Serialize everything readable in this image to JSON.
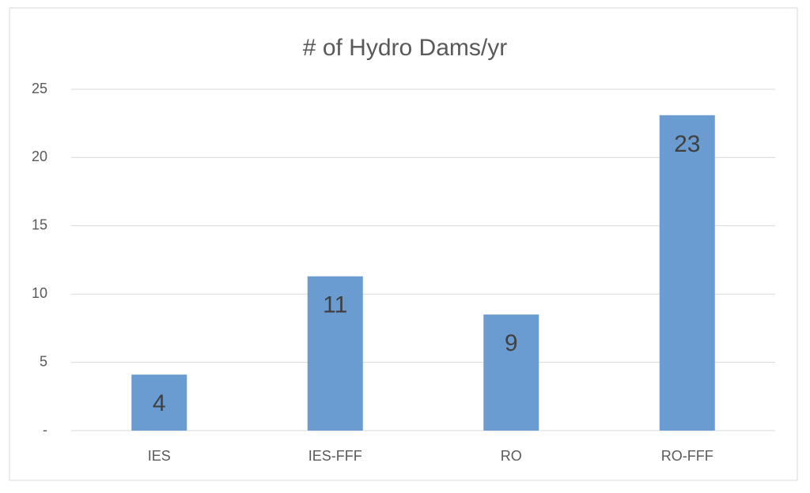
{
  "chart_data": {
    "type": "bar",
    "title": "# of Hydro Dams/yr",
    "categories": [
      "IES",
      "IES-FFF",
      "RO",
      "RO-FFF"
    ],
    "values": [
      4.1,
      11.3,
      8.5,
      23.1
    ],
    "value_labels": [
      "4",
      "11",
      "9",
      "23"
    ],
    "color": "#6a9bd1",
    "ylim": [
      0,
      25
    ],
    "yticks": [
      {
        "value": 0,
        "label": "-"
      },
      5,
      10,
      15,
      20,
      25
    ],
    "grid": true
  }
}
